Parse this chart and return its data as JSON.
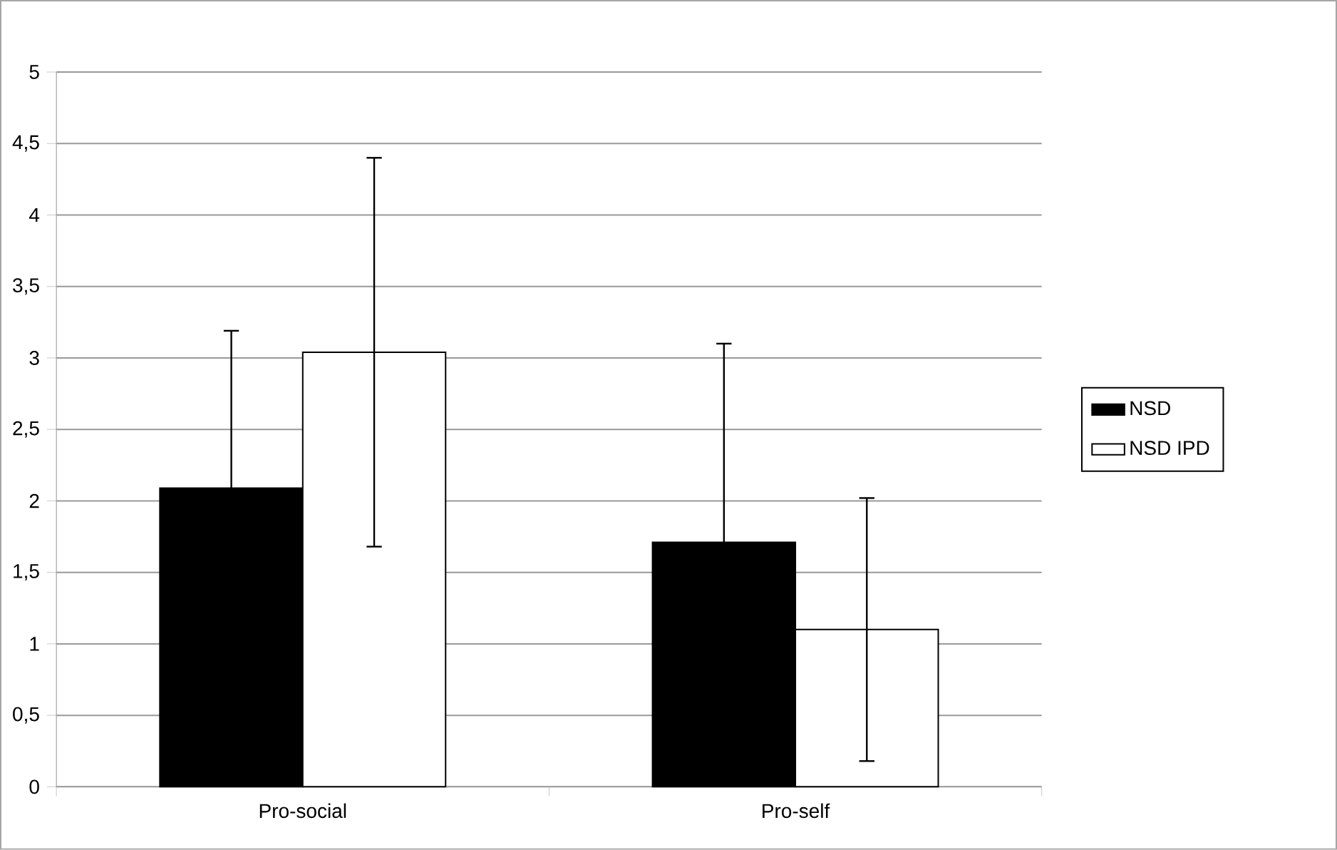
{
  "chart_data": {
    "type": "bar",
    "categories": [
      "Pro-social",
      "Pro-self"
    ],
    "series": [
      {
        "name": "NSD",
        "color": "#000000",
        "values": [
          2.09,
          1.71
        ],
        "errors": [
          1.1,
          1.39
        ]
      },
      {
        "name": "NSD IPD",
        "color": "#ffffff",
        "values": [
          3.04,
          1.1
        ],
        "errors": [
          1.36,
          0.92
        ]
      }
    ],
    "ylim": [
      0,
      5
    ],
    "yticks": [
      0,
      {
        "value": 0.5,
        "label": "0,5"
      },
      1,
      {
        "value": 1.5,
        "label": "1,5"
      },
      2,
      {
        "value": 2.5,
        "label": "2,5"
      },
      3,
      {
        "value": 3.5,
        "label": "3,5"
      },
      4,
      {
        "value": 4.5,
        "label": "4,5"
      },
      5
    ],
    "grid": "y",
    "legend": "right"
  }
}
